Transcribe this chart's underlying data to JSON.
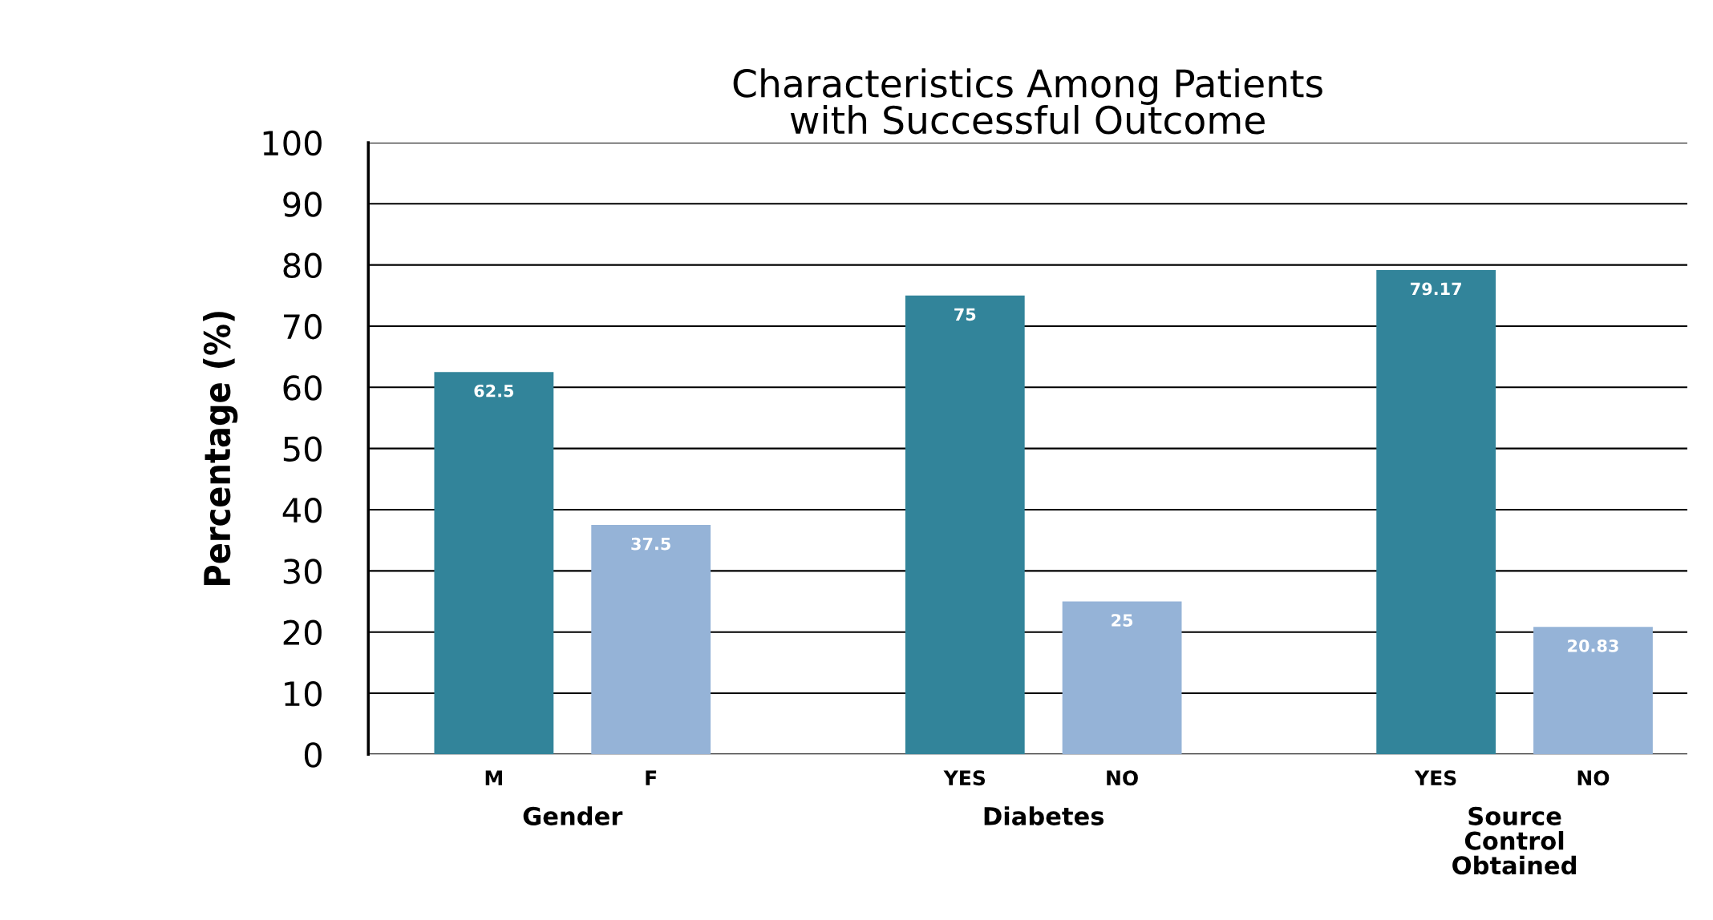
{
  "chart_data": {
    "type": "bar",
    "title": "Characteristics Among Patients\nwith Successful Outcome",
    "ylabel": "Percentage (%)",
    "categories": [
      "M",
      "F",
      "YES",
      "NO",
      "YES",
      "NO"
    ],
    "values": [
      62.5,
      37.5,
      75,
      25,
      79.17,
      20.83
    ],
    "colors": [
      "#32849a",
      "#95b3d7",
      "#32849a",
      "#95b3d7",
      "#32849a",
      "#95b3d7"
    ],
    "annotations": [
      "Gender",
      "Diabetes",
      "Source\nControl\nObtained"
    ],
    "ylim": [
      0,
      100
    ],
    "yticks": [
      0,
      10,
      20,
      30,
      40,
      50,
      60,
      70,
      80,
      90,
      100
    ],
    "grid": "y",
    "data_labels": true,
    "legend": false
  }
}
